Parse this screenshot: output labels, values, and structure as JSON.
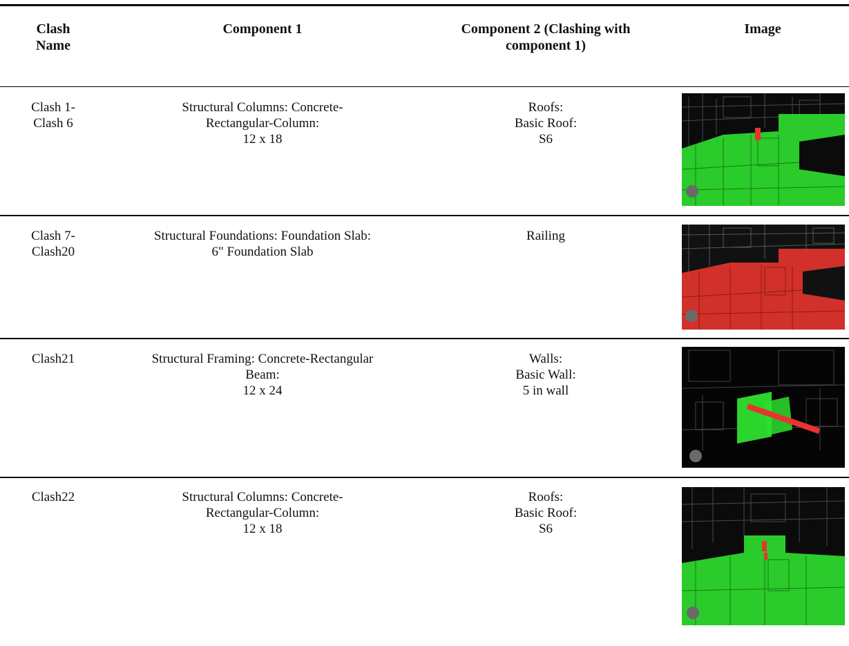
{
  "table": {
    "headers": {
      "clash_name": [
        "Clash",
        "Name"
      ],
      "component1": [
        "Component 1"
      ],
      "component2": [
        "Component 2 (Clashing with",
        "component 1)"
      ],
      "image": [
        "Image"
      ]
    },
    "rows": [
      {
        "clash_name": [
          "Clash 1-",
          "Clash 6"
        ],
        "component1": [
          "Structural Columns: Concrete-",
          "Rectangular-Column:",
          "12 x 18"
        ],
        "component2": [
          "Roofs:",
          "Basic Roof:",
          "S6"
        ]
      },
      {
        "clash_name": [
          "Clash 7-",
          "Clash20"
        ],
        "component1": [
          "Structural Foundations: Foundation Slab:",
          "6\" Foundation Slab"
        ],
        "component2": [
          "Railing"
        ]
      },
      {
        "clash_name": [
          "Clash21"
        ],
        "component1": [
          "Structural Framing: Concrete-Rectangular",
          "Beam:",
          "12 x 24"
        ],
        "component2": [
          "Walls:",
          "Basic Wall:",
          "5 in wall"
        ]
      },
      {
        "clash_name": [
          "Clash22"
        ],
        "component1": [
          "Structural Columns: Concrete-",
          "Rectangular-Column:",
          "12 x 18"
        ],
        "component2": [
          "Roofs:",
          "Basic Roof:",
          "S6"
        ]
      }
    ]
  },
  "colors": {
    "clash_green": "#2ee02e",
    "clash_red": "#e8342e",
    "wireframe_bg": "#0a0a0a"
  }
}
